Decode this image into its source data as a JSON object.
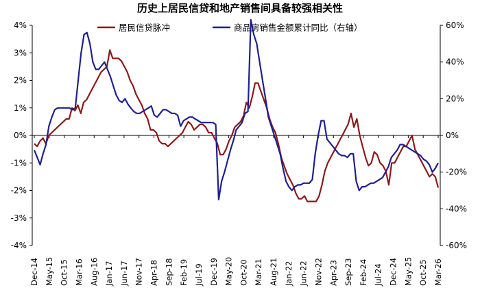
{
  "chart_data": {
    "type": "line",
    "title": "历史上居民信贷和地产销售间具备较强相关性",
    "x_ticks": [
      "Dec-14",
      "May-15",
      "Oct-15",
      "Mar-16",
      "Aug-16",
      "Jan-17",
      "Jun-17",
      "Nov-17",
      "Apr-18",
      "Sep-18",
      "Feb-19",
      "Jul-19",
      "Dec-19",
      "May-20",
      "Oct-20",
      "Mar-21",
      "Aug-21",
      "Jan-22",
      "Jun-22",
      "Nov-22",
      "Apr-23",
      "Sep-23",
      "Feb-24",
      "Jul-24",
      "Dec-24",
      "May-25",
      "Oct-25",
      "Mar-26"
    ],
    "y_left": {
      "ylim": [
        -4,
        4
      ],
      "ticks": [
        "-4%",
        "-3%",
        "-2%",
        "-1%",
        "0%",
        "1%",
        "2%",
        "3%",
        "4%"
      ]
    },
    "y_right": {
      "ylim": [
        -60,
        60
      ],
      "ticks": [
        "-60%",
        "-40%",
        "-20%",
        "0%",
        "20%",
        "40%",
        "60%"
      ]
    },
    "legend_position": "top",
    "colors": {
      "series1": "#8B1A1A",
      "series2": "#1F1F8F"
    },
    "series": [
      {
        "name": "居民信贷脉冲",
        "axis": "left",
        "values": [
          -0.3,
          -0.4,
          -0.2,
          -0.1,
          -0.3,
          0.0,
          0.1,
          0.2,
          0.3,
          0.4,
          0.5,
          0.6,
          0.6,
          1.0,
          0.9,
          1.1,
          0.8,
          1.2,
          1.3,
          1.5,
          1.7,
          1.9,
          2.1,
          2.3,
          2.4,
          2.5,
          3.1,
          2.8,
          2.8,
          2.8,
          2.7,
          2.5,
          2.3,
          2.0,
          1.8,
          1.5,
          1.3,
          1.1,
          0.8,
          0.6,
          0.2,
          0.2,
          0.1,
          -0.2,
          -0.3,
          -0.3,
          -0.4,
          -0.3,
          -0.2,
          -0.1,
          0.0,
          0.1,
          0.3,
          0.5,
          0.4,
          0.2,
          0.3,
          0.4,
          0.4,
          0.3,
          0.1,
          0.1,
          -0.1,
          -0.3,
          -0.7,
          -0.7,
          -0.5,
          -0.2,
          0.0,
          0.3,
          0.4,
          0.5,
          0.7,
          1.2,
          1.0,
          1.4,
          1.9,
          1.9,
          1.6,
          1.3,
          1.0,
          0.6,
          0.3,
          0.1,
          -0.3,
          -0.8,
          -1.1,
          -1.4,
          -1.6,
          -1.8,
          -2.1,
          -2.3,
          -2.3,
          -2.2,
          -2.4,
          -2.4,
          -2.4,
          -2.4,
          -2.2,
          -1.8,
          -1.3,
          -1.0,
          -0.8,
          -0.6,
          -0.4,
          -0.2,
          0.0,
          0.2,
          0.4,
          0.8,
          0.3,
          0.6,
          0.0,
          -0.4,
          -0.8,
          -1.1,
          -1.0,
          -0.6,
          -0.7,
          -1.0,
          -1.1,
          -1.3,
          -1.8,
          -1.0,
          -1.0,
          -0.8,
          -0.6,
          -0.4,
          -0.4,
          -0.2,
          0.0,
          -0.5,
          -0.7,
          -0.9,
          -1.1,
          -1.3,
          -1.5,
          -1.4,
          -1.5,
          -1.9
        ],
        "x_start": "Dec-14"
      },
      {
        "name": "商品房销售金额累计同比（右轴）",
        "axis": "right",
        "values": [
          -8,
          -12,
          -16,
          -10,
          -5,
          5,
          10,
          14,
          15,
          15,
          15,
          15,
          15,
          14,
          15,
          30,
          45,
          55,
          56,
          50,
          40,
          36,
          36,
          38,
          40,
          36,
          32,
          27,
          22,
          19,
          18,
          20,
          17,
          15,
          13,
          12,
          12,
          13,
          14,
          15,
          16,
          11,
          10,
          12,
          14,
          14,
          13,
          12,
          12,
          11,
          5,
          8,
          9,
          10,
          10,
          9,
          8,
          7,
          7,
          7,
          7,
          7,
          6,
          -35,
          -25,
          -20,
          -14,
          -8,
          -3,
          3,
          5,
          7,
          12,
          13,
          63,
          55,
          50,
          40,
          30,
          20,
          10,
          5,
          0,
          -5,
          -10,
          -18,
          -25,
          -28,
          -30,
          -28,
          -27,
          -27,
          -26,
          -26,
          -26,
          -24,
          -10,
          0,
          8,
          8,
          -2,
          -4,
          -6,
          -8,
          -10,
          -11,
          -11,
          -12,
          -10,
          -10,
          -25,
          -30,
          -28,
          -28,
          -27,
          -26,
          -26,
          -25,
          -24,
          -23,
          -20,
          -17,
          -12,
          -10,
          -8,
          -5,
          -5,
          -6,
          -7,
          -8,
          -9,
          -10,
          -11,
          -13,
          -14,
          -16,
          -20,
          -18,
          -15
        ],
        "x_start": "Dec-14"
      }
    ]
  }
}
